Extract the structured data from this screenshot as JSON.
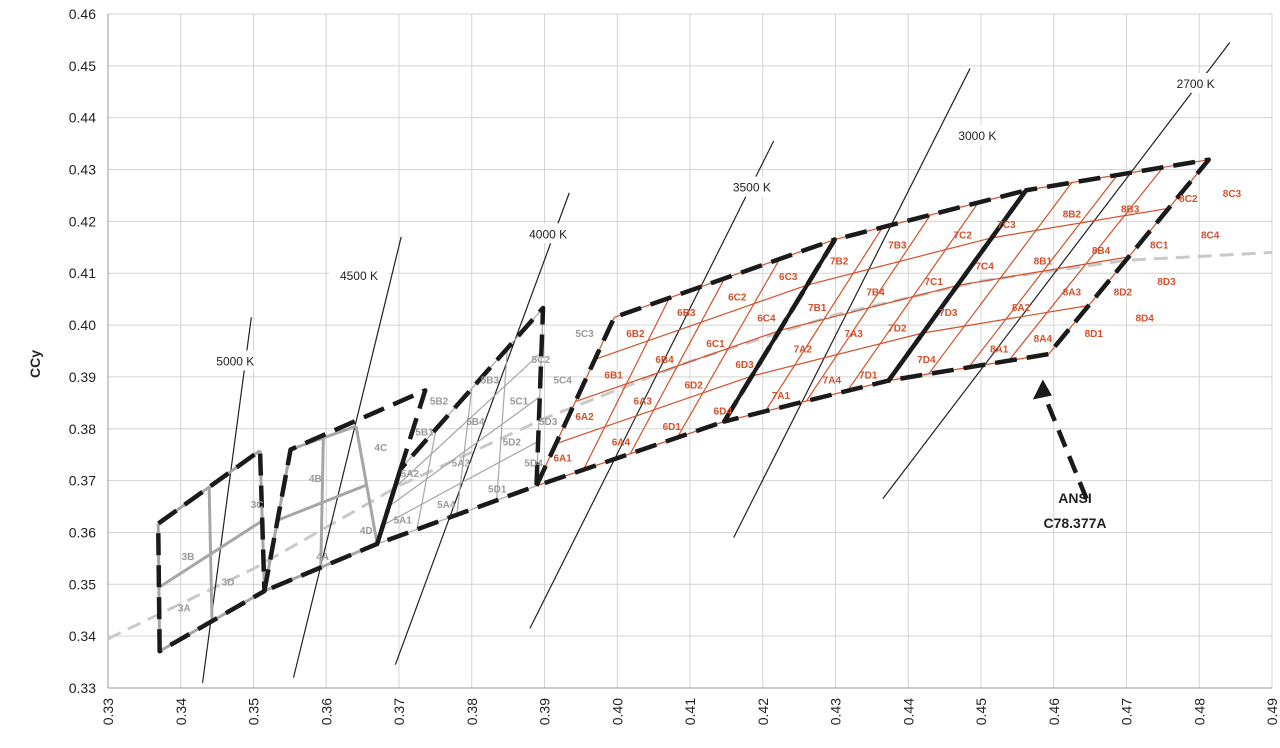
{
  "chart_data": {
    "type": "scatter",
    "title": "",
    "xlabel": "",
    "ylabel": "CCy",
    "xlim": [
      0.33,
      0.49
    ],
    "ylim": [
      0.33,
      0.46
    ],
    "grid": true,
    "x_ticks": [
      "0.33",
      "0.34",
      "0.35",
      "0.36",
      "0.37",
      "0.38",
      "0.39",
      "0.40",
      "0.41",
      "0.42",
      "0.43",
      "0.44",
      "0.45",
      "0.46",
      "0.47",
      "0.48",
      "0.49"
    ],
    "y_ticks": [
      "0.33",
      "0.34",
      "0.35",
      "0.36",
      "0.37",
      "0.38",
      "0.39",
      "0.40",
      "0.41",
      "0.42",
      "0.43",
      "0.44",
      "0.45",
      "0.46"
    ],
    "planckian_locus": [
      [
        0.33,
        0.3395
      ],
      [
        0.35,
        0.353
      ],
      [
        0.37,
        0.369
      ],
      [
        0.39,
        0.382
      ],
      [
        0.41,
        0.393
      ],
      [
        0.43,
        0.402
      ],
      [
        0.45,
        0.4085
      ],
      [
        0.47,
        0.4125
      ],
      [
        0.49,
        0.414
      ]
    ],
    "cct_lines": [
      {
        "label": "5000 K",
        "label_at": [
          0.3475,
          0.393
        ],
        "from": [
          0.343,
          0.331
        ],
        "to": [
          0.3497,
          0.4015
        ]
      },
      {
        "label": "4500 K",
        "label_at": [
          0.3645,
          0.4095
        ],
        "from": [
          0.3555,
          0.332
        ],
        "to": [
          0.3703,
          0.417
        ]
      },
      {
        "label": "4000 K",
        "label_at": [
          0.3905,
          0.4175
        ],
        "from": [
          0.3695,
          0.3345
        ],
        "to": [
          0.3934,
          0.4255
        ]
      },
      {
        "label": "3500 K",
        "label_at": [
          0.4185,
          0.4265
        ],
        "from": [
          0.388,
          0.3415
        ],
        "to": [
          0.4215,
          0.4355
        ]
      },
      {
        "label": "3000 K",
        "label_at": [
          0.4495,
          0.4365
        ],
        "from": [
          0.416,
          0.359
        ],
        "to": [
          0.4485,
          0.4495
        ]
      },
      {
        "label": "2700 K",
        "label_at": [
          0.4795,
          0.4465
        ],
        "from": [
          0.4365,
          0.3665
        ],
        "to": [
          0.4842,
          0.4545
        ]
      }
    ],
    "gray_bins": {
      "col_edges_x": [
        [
          0.3365,
          0.337
        ],
        [
          0.3455,
          0.3465
        ],
        [
          0.3545,
          0.3555
        ],
        [
          0.3635,
          0.3645
        ],
        [
          0.3725,
          0.3735
        ],
        [
          0.3815,
          0.3825
        ],
        [
          0.3905,
          0.3915
        ],
        [
          0.3995,
          0.4005
        ]
      ],
      "rows": [
        [
          [
            0.3371,
            0.3371
          ],
          [
            0.3451,
            0.3451
          ],
          [
            0.3551,
            0.3551
          ],
          [
            0.3663,
            0.3663
          ],
          [
            0.3751,
            0.3751
          ],
          [
            0.3813,
            0.3813
          ],
          [
            0.3889,
            0.3889
          ],
          [
            0.3962,
            0.3962
          ]
        ],
        [
          [
            0.3493,
            0.3493
          ],
          [
            0.3566,
            0.3566
          ],
          [
            0.3664,
            0.3664
          ],
          [
            0.3776,
            0.3776
          ],
          [
            0.3855,
            0.3855
          ],
          [
            0.3911,
            0.3911
          ],
          [
            0.3981,
            0.3981
          ],
          [
            0.4047,
            0.4047
          ]
        ]
      ]
    },
    "bins_gray": [
      {
        "label": "3A",
        "x": 0.3405,
        "y": 0.3455
      },
      {
        "label": "3B",
        "x": 0.341,
        "y": 0.3555
      },
      {
        "label": "3C",
        "x": 0.3505,
        "y": 0.3655
      },
      {
        "label": "3D",
        "x": 0.3465,
        "y": 0.3505
      },
      {
        "label": "4A",
        "x": 0.3595,
        "y": 0.3555
      },
      {
        "label": "4B",
        "x": 0.3585,
        "y": 0.3705
      },
      {
        "label": "4C",
        "x": 0.3675,
        "y": 0.3765
      },
      {
        "label": "4D",
        "x": 0.3655,
        "y": 0.3605
      },
      {
        "label": "5A1",
        "x": 0.3705,
        "y": 0.3625
      },
      {
        "label": "5A2",
        "x": 0.3715,
        "y": 0.3715
      },
      {
        "label": "5A3",
        "x": 0.3785,
        "y": 0.3735
      },
      {
        "label": "5A4",
        "x": 0.3765,
        "y": 0.3655
      },
      {
        "label": "5B1",
        "x": 0.3735,
        "y": 0.3795
      },
      {
        "label": "5B2",
        "x": 0.3755,
        "y": 0.3855
      },
      {
        "label": "5B3",
        "x": 0.3825,
        "y": 0.3895
      },
      {
        "label": "5B4",
        "x": 0.3805,
        "y": 0.3815
      },
      {
        "label": "5C1",
        "x": 0.3865,
        "y": 0.3855
      },
      {
        "label": "5C2",
        "x": 0.3895,
        "y": 0.3935
      },
      {
        "label": "5C3",
        "x": 0.3955,
        "y": 0.3985
      },
      {
        "label": "5C4",
        "x": 0.3925,
        "y": 0.3895
      },
      {
        "label": "5D1",
        "x": 0.3835,
        "y": 0.3685
      },
      {
        "label": "5D2",
        "x": 0.3855,
        "y": 0.3775
      },
      {
        "label": "5D3",
        "x": 0.3905,
        "y": 0.3815
      },
      {
        "label": "5D4",
        "x": 0.3885,
        "y": 0.3735
      }
    ],
    "bins_red": [
      {
        "label": "6A1",
        "x": 0.3925,
        "y": 0.3745
      },
      {
        "label": "6A2",
        "x": 0.3955,
        "y": 0.3825
      },
      {
        "label": "6A3",
        "x": 0.4035,
        "y": 0.3855
      },
      {
        "label": "6A4",
        "x": 0.4005,
        "y": 0.3775
      },
      {
        "label": "6B1",
        "x": 0.3995,
        "y": 0.3905
      },
      {
        "label": "6B2",
        "x": 0.4025,
        "y": 0.3985
      },
      {
        "label": "6B3",
        "x": 0.4095,
        "y": 0.4025
      },
      {
        "label": "6B4",
        "x": 0.4065,
        "y": 0.3935
      },
      {
        "label": "6C1",
        "x": 0.4135,
        "y": 0.3965
      },
      {
        "label": "6C2",
        "x": 0.4165,
        "y": 0.4055
      },
      {
        "label": "6C3",
        "x": 0.4235,
        "y": 0.4095
      },
      {
        "label": "6C4",
        "x": 0.4205,
        "y": 0.4015
      },
      {
        "label": "6D1",
        "x": 0.4075,
        "y": 0.3805
      },
      {
        "label": "6D2",
        "x": 0.4105,
        "y": 0.3885
      },
      {
        "label": "6D3",
        "x": 0.4175,
        "y": 0.3925
      },
      {
        "label": "6D4",
        "x": 0.4145,
        "y": 0.3835
      },
      {
        "label": "7A1",
        "x": 0.4225,
        "y": 0.3865
      },
      {
        "label": "7A2",
        "x": 0.4255,
        "y": 0.3955
      },
      {
        "label": "7A3",
        "x": 0.4325,
        "y": 0.3985
      },
      {
        "label": "7A4",
        "x": 0.4295,
        "y": 0.3895
      },
      {
        "label": "7B1",
        "x": 0.4275,
        "y": 0.4035
      },
      {
        "label": "7B2",
        "x": 0.4305,
        "y": 0.4125
      },
      {
        "label": "7B3",
        "x": 0.4385,
        "y": 0.4155
      },
      {
        "label": "7B4",
        "x": 0.4355,
        "y": 0.4065
      },
      {
        "label": "7C1",
        "x": 0.4435,
        "y": 0.4085
      },
      {
        "label": "7C2",
        "x": 0.4475,
        "y": 0.4175
      },
      {
        "label": "7C3",
        "x": 0.4535,
        "y": 0.4195
      },
      {
        "label": "7C4",
        "x": 0.4505,
        "y": 0.4115
      },
      {
        "label": "7D1",
        "x": 0.4345,
        "y": 0.3905
      },
      {
        "label": "7D2",
        "x": 0.4385,
        "y": 0.3995
      },
      {
        "label": "7D3",
        "x": 0.4455,
        "y": 0.4025
      },
      {
        "label": "7D4",
        "x": 0.4425,
        "y": 0.3935
      },
      {
        "label": "8A1",
        "x": 0.4525,
        "y": 0.3955
      },
      {
        "label": "8A2",
        "x": 0.4555,
        "y": 0.4035
      },
      {
        "label": "8A3",
        "x": 0.4625,
        "y": 0.4065
      },
      {
        "label": "8A4",
        "x": 0.4585,
        "y": 0.3975
      },
      {
        "label": "8B1",
        "x": 0.4585,
        "y": 0.4125
      },
      {
        "label": "8B2",
        "x": 0.4625,
        "y": 0.4215
      },
      {
        "label": "8B3",
        "x": 0.4705,
        "y": 0.4225
      },
      {
        "label": "8B4",
        "x": 0.4665,
        "y": 0.4145
      },
      {
        "label": "8C1",
        "x": 0.4745,
        "y": 0.4155
      },
      {
        "label": "8C2",
        "x": 0.4785,
        "y": 0.4245
      },
      {
        "label": "8C3",
        "x": 0.4845,
        "y": 0.4255
      },
      {
        "label": "8C4",
        "x": 0.4815,
        "y": 0.4175
      },
      {
        "label": "8D1",
        "x": 0.4655,
        "y": 0.3985
      },
      {
        "label": "8D2",
        "x": 0.4695,
        "y": 0.4065
      },
      {
        "label": "8D3",
        "x": 0.4755,
        "y": 0.4085
      },
      {
        "label": "8D4",
        "x": 0.4725,
        "y": 0.4015
      }
    ],
    "ansi_quads": [
      [
        [
          0.3371,
          0.3371
        ],
        [
          0.3369,
          0.3617
        ],
        [
          0.3509,
          0.3758
        ],
        [
          0.3515,
          0.3487
        ]
      ],
      [
        [
          0.3515,
          0.3487
        ],
        [
          0.3551,
          0.376
        ],
        [
          0.3736,
          0.3874
        ],
        [
          0.367,
          0.3578
        ]
      ],
      [
        [
          0.367,
          0.3578
        ],
        [
          0.3702,
          0.3722
        ],
        [
          0.3898,
          0.4033
        ],
        [
          0.3889,
          0.369
        ]
      ],
      [
        [
          0.3889,
          0.369
        ],
        [
          0.3996,
          0.4015
        ],
        [
          0.4299,
          0.4165
        ],
        [
          0.4147,
          0.3814
        ]
      ],
      [
        [
          0.4147,
          0.3814
        ],
        [
          0.4299,
          0.4165
        ],
        [
          0.4562,
          0.426
        ],
        [
          0.4373,
          0.3893
        ]
      ],
      [
        [
          0.4373,
          0.3893
        ],
        [
          0.4562,
          0.426
        ],
        [
          0.4813,
          0.4319
        ],
        [
          0.4593,
          0.3944
        ]
      ]
    ],
    "annotation": {
      "line1": "ANSI",
      "line2": "C78.377A",
      "arrow_from": [
        0.4645,
        0.3665
      ],
      "arrow_to": [
        0.4585,
        0.3895
      ]
    }
  }
}
